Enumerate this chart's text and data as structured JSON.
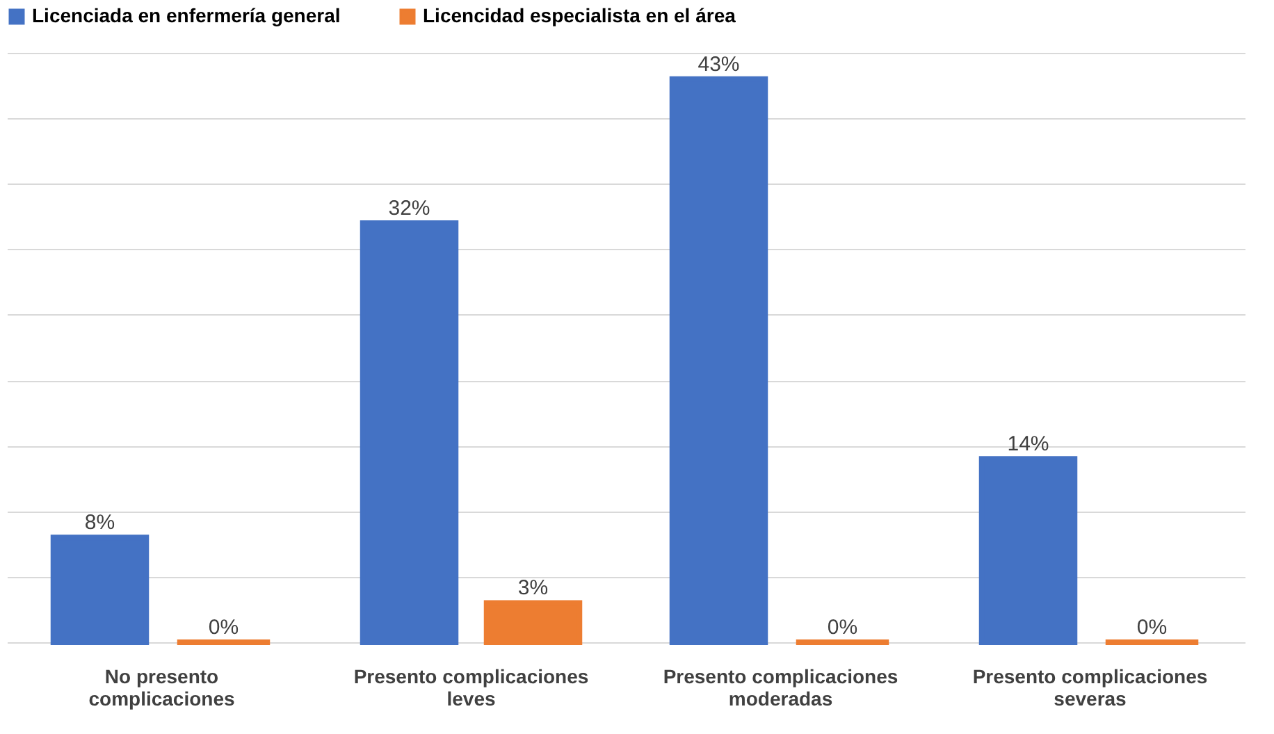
{
  "chart_data": {
    "type": "bar",
    "categories": [
      "No presento complicaciones",
      "Presento complicaciones leves",
      "Presento complicaciones moderadas",
      "Presento complicaciones severas"
    ],
    "series": [
      {
        "name": "Licenciada en enfermería general",
        "color": "#4472c4",
        "values": [
          8,
          32,
          43,
          14
        ],
        "value_labels": [
          "8%",
          "32%",
          "43%",
          "14%"
        ]
      },
      {
        "name": "Licencidad especialista en el área",
        "color": "#ed7d31",
        "values": [
          0,
          3,
          0,
          0
        ],
        "value_labels": [
          "0%",
          "3%",
          "0%",
          "0%"
        ]
      }
    ],
    "grid": "y",
    "tick_labels": "x",
    "legend": "top"
  }
}
